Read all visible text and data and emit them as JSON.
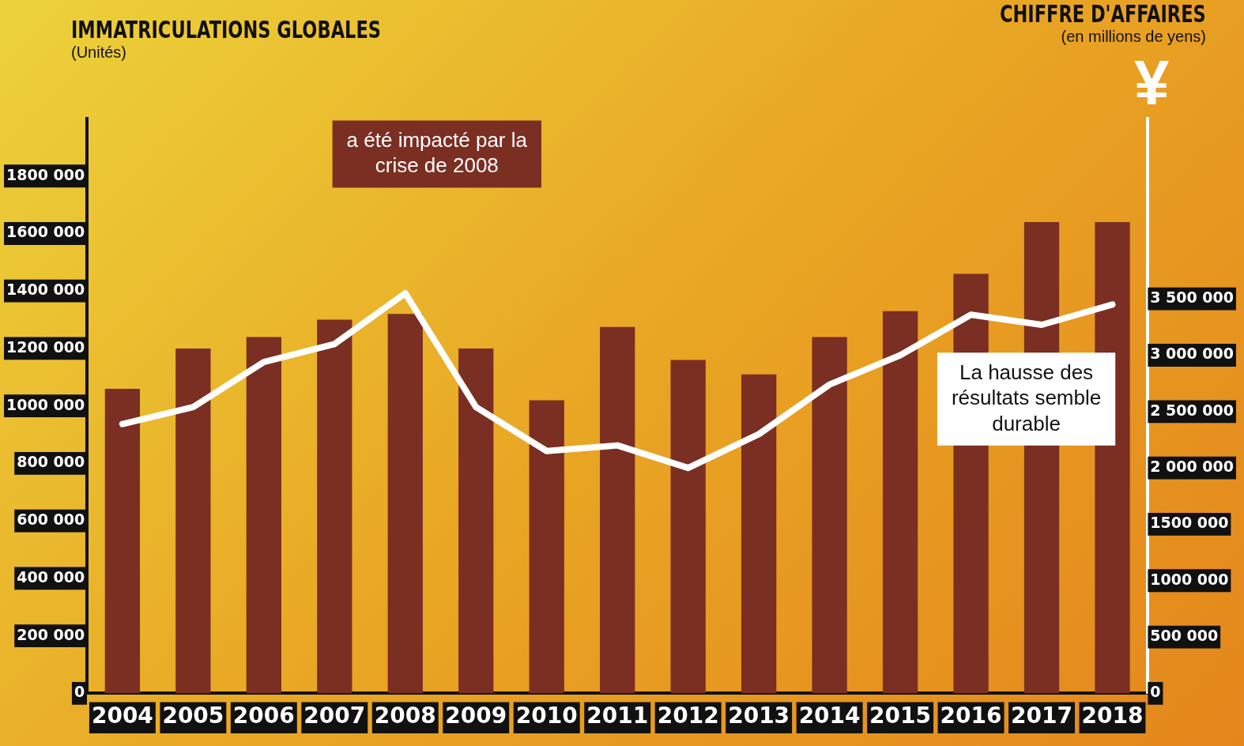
{
  "chart_data": {
    "type": "bar",
    "ylabel": "IMMATRICULATIONS GLOBALES (Unités)",
    "y2label": "CHIFFRE D'AFFAIRES (en millions de yens)",
    "categories": [
      "2004",
      "2005",
      "2006",
      "2007",
      "2008",
      "2009",
      "2010",
      "2011",
      "2012",
      "2013",
      "2014",
      "2015",
      "2016",
      "2017",
      "2018"
    ],
    "series": [
      {
        "color": "#7b2e22",
        "values": [
          1060000,
          1200000,
          1240000,
          1300000,
          1320000,
          1200000,
          1020000,
          1275000,
          1160000,
          1110000,
          1240000,
          1330000,
          1460000,
          1640000,
          1640000
        ]
      },
      {
        "type": "line",
        "axis": "y2",
        "color": "#ffffff",
        "values": [
          2390000,
          2540000,
          2940000,
          3100000,
          3550000,
          2540000,
          2150000,
          2200000,
          2000000,
          2300000,
          2740000,
          3000000,
          3360000,
          3270000,
          3450000
        ]
      }
    ],
    "ylim": [
      0,
      2000000
    ],
    "yticks": [
      {
        "value": 0,
        "label": "0"
      },
      {
        "value": 200000,
        "label": "200 000"
      },
      {
        "value": 400000,
        "label": "400 000"
      },
      {
        "value": 600000,
        "label": "600 000"
      },
      {
        "value": 800000,
        "label": "800 000"
      },
      {
        "value": 1000000,
        "label": "1000 000"
      },
      {
        "value": 1200000,
        "label": "1200 000"
      },
      {
        "value": 1400000,
        "label": "1400 000"
      },
      {
        "value": 1600000,
        "label": "1600 000"
      },
      {
        "value": 1800000,
        "label": "1800 000"
      }
    ],
    "y2lim": [
      0,
      5100000
    ],
    "y2ticks": [
      {
        "value": 0,
        "label": "0"
      },
      {
        "value": 500000,
        "label": "500 000"
      },
      {
        "value": 1000000,
        "label": "1000 000"
      },
      {
        "value": 1500000,
        "label": "1500 000"
      },
      {
        "value": 2000000,
        "label": "2 000 000"
      },
      {
        "value": 2500000,
        "label": "2 500 000"
      },
      {
        "value": 3000000,
        "label": "3 000 000"
      },
      {
        "value": 3500000,
        "label": "3 500 000"
      }
    ],
    "annotations": [
      "a été impacté par la crise de 2008",
      "La hausse des résultats semble durable",
      "¥"
    ],
    "grid": false,
    "legend": false,
    "marker": "none",
    "line_style": "solid"
  }
}
